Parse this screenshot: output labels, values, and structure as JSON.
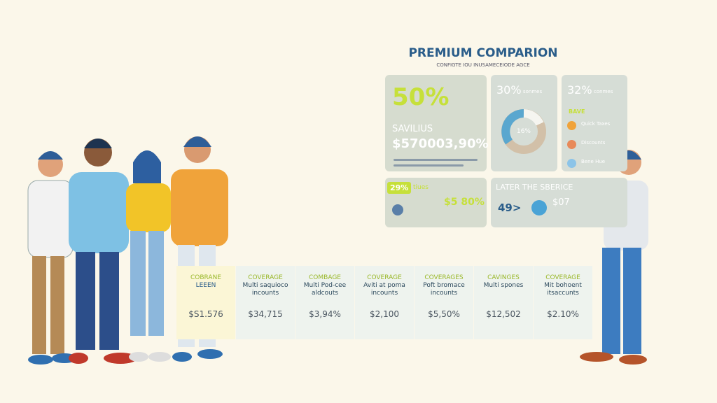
{
  "header": {
    "title": "PREMIUM COMPARION",
    "subtitle": "CONFIGTE IOU INUSAMECEIODE AGCE"
  },
  "cards": [
    {
      "percent": "50%",
      "label": "SAVILIUS",
      "amount": "$570003,90%"
    },
    {
      "percent": "30%",
      "caption": "sonmes",
      "center": "16%"
    },
    {
      "percent": "32%",
      "caption": "conmes",
      "heading": "BAVE",
      "items": [
        "Quick Taxes",
        "Discounts",
        "Bene Hue"
      ]
    },
    {
      "percent": "29%",
      "caption": "tiues",
      "amount": "$5 80%"
    },
    {
      "title": "LATER THE SBERICE",
      "value": "49>",
      "amount": "$07"
    }
  ],
  "table": {
    "headers": [
      [
        "COBRANE",
        "LEEEN"
      ],
      [
        "COVERAGE",
        "Multi saquioco",
        "incounts"
      ],
      [
        "COMBAGE",
        "Multi Pod-cee",
        "aldcouts"
      ],
      [
        "COVERAGE",
        "Aviti at poma",
        "incounts"
      ],
      [
        "COVERAGES",
        "Poft bromace",
        "incounts"
      ],
      [
        "CAVINGES",
        "Multi spones"
      ],
      [
        "COVERAGE",
        "Mit bohoent",
        "itsaccunts"
      ]
    ],
    "values": [
      "$S1.576",
      "$34,715",
      "$3,94%",
      "$2,100",
      "$5,50%",
      "$12,502",
      "$2.10%"
    ]
  }
}
